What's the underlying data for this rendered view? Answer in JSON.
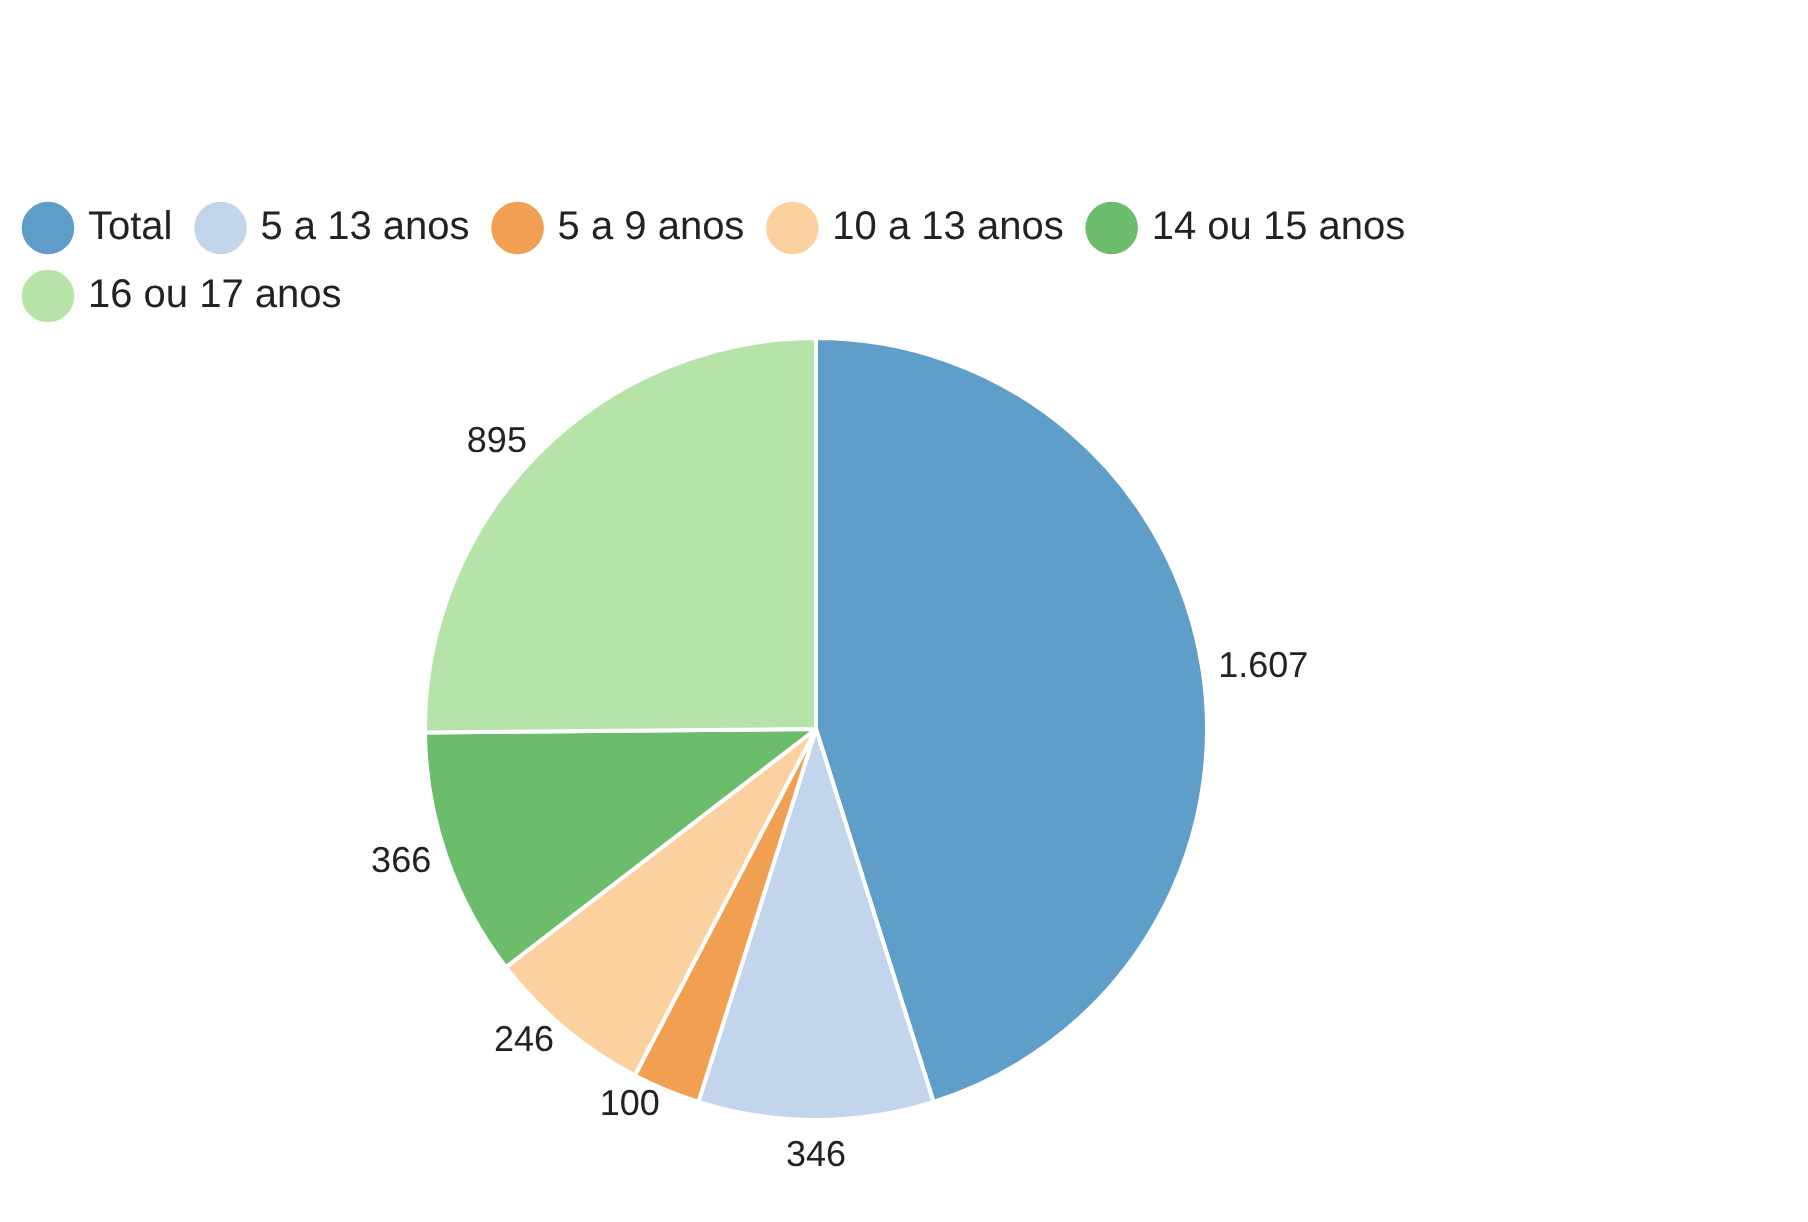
{
  "chart_data": {
    "type": "pie",
    "categories": [
      "Total",
      "5 a 13 anos",
      "5 a 9 anos",
      "10 a 13 anos",
      "14 ou 15 anos",
      "16 ou 17 anos"
    ],
    "values": [
      1607,
      346,
      100,
      246,
      366,
      895
    ],
    "value_labels": [
      "1.607",
      "346",
      "100",
      "246",
      "366",
      "895"
    ],
    "colors": [
      "#5f9ec9",
      "#c3d5ec",
      "#f0a050",
      "#fcd1a0",
      "#6bbd6b",
      "#b5e3a8"
    ],
    "legend": "top left"
  }
}
